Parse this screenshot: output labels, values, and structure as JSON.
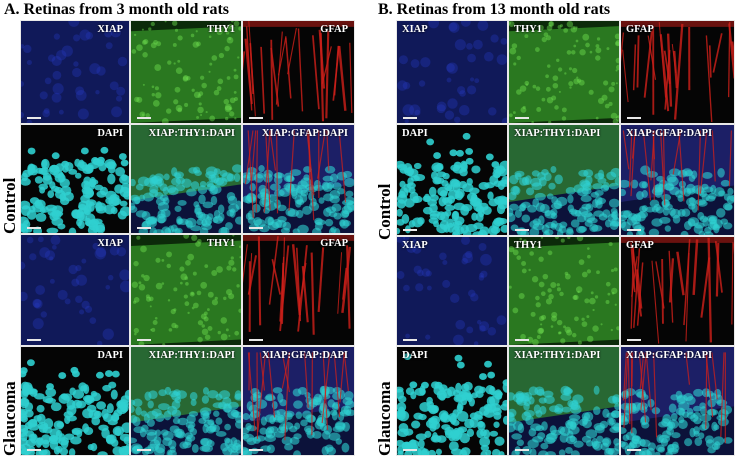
{
  "panel_a": {
    "title": "A. Retinas from 3 month old rats",
    "row_labels": [
      "Control",
      "Glaucoma"
    ],
    "tiles": [
      {
        "label": "XIAP",
        "channel": "blue",
        "align": "right"
      },
      {
        "label": "THY1",
        "channel": "green",
        "align": "right"
      },
      {
        "label": "GFAP",
        "channel": "red",
        "align": "right"
      },
      {
        "label": "DAPI",
        "channel": "cyan",
        "align": "right"
      },
      {
        "label": "XIAP:THY1:DAPI",
        "channel": "merge-green",
        "align": "right"
      },
      {
        "label": "XIAP:GFAP:DAPI",
        "channel": "merge-red",
        "align": "right"
      },
      {
        "label": "XIAP",
        "channel": "blue",
        "align": "right"
      },
      {
        "label": "THY1",
        "channel": "green",
        "align": "right"
      },
      {
        "label": "GFAP",
        "channel": "red",
        "align": "right"
      },
      {
        "label": "DAPI",
        "channel": "cyan",
        "align": "right"
      },
      {
        "label": "XIAP:THY1:DAPI",
        "channel": "merge-green",
        "align": "right"
      },
      {
        "label": "XIAP:GFAP:DAPI",
        "channel": "merge-red",
        "align": "right"
      }
    ]
  },
  "panel_b": {
    "title": "B. Retinas from 13 month old rats",
    "row_labels": [
      "Control",
      "Glaucoma"
    ],
    "tiles": [
      {
        "label": "XIAP",
        "channel": "blue",
        "align": "left"
      },
      {
        "label": "THY1",
        "channel": "green",
        "align": "left"
      },
      {
        "label": "GFAP",
        "channel": "red",
        "align": "left"
      },
      {
        "label": "DAPI",
        "channel": "cyan",
        "align": "left"
      },
      {
        "label": "XIAP:THY1:DAPI",
        "channel": "merge-green",
        "align": "left"
      },
      {
        "label": "XIAP:GFAP:DAPI",
        "channel": "merge-red",
        "align": "left"
      },
      {
        "label": "XIAP",
        "channel": "blue",
        "align": "left"
      },
      {
        "label": "THY1",
        "channel": "green",
        "align": "left"
      },
      {
        "label": "GFAP",
        "channel": "red",
        "align": "left"
      },
      {
        "label": "DAPI",
        "channel": "cyan",
        "align": "left"
      },
      {
        "label": "XIAP:THY1:DAPI",
        "channel": "merge-green",
        "align": "left"
      },
      {
        "label": "XIAP:GFAP:DAPI",
        "channel": "merge-red",
        "align": "left"
      }
    ]
  },
  "colors": {
    "xiap_blue": "#1a2a9e",
    "thy1_green": "#3fae2e",
    "gfap_red": "#d0201a",
    "dapi_cyan": "#2fd0d0",
    "background": "#050505"
  }
}
